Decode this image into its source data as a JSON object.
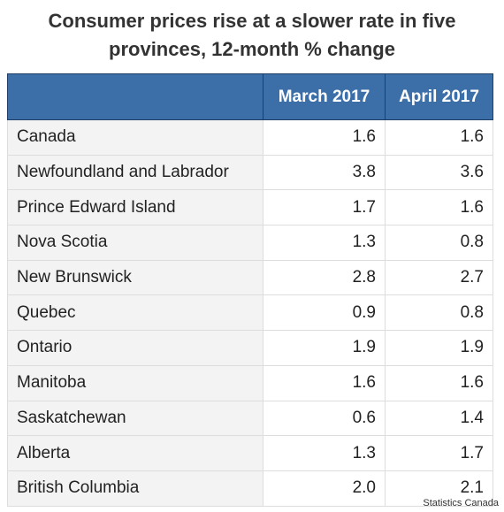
{
  "title_lines": [
    "Consumer prices rise at a slower rate in five",
    "provinces, 12-month % change"
  ],
  "source": "Statistics Canada",
  "colors": {
    "header_bg": "#3c6fa8",
    "header_text": "#ffffff",
    "name_cell_bg": "#f3f3f3",
    "value_cell_bg": "#ffffff"
  },
  "chart_data": {
    "type": "table",
    "title": "Consumer prices rise at a slower rate in five provinces, 12-month % change",
    "columns": [
      "",
      "March 2017",
      "April 2017"
    ],
    "rows": [
      {
        "name": "Canada",
        "march": "1.6",
        "april": "1.6"
      },
      {
        "name": "Newfoundland and Labrador",
        "march": "3.8",
        "april": "3.6"
      },
      {
        "name": "Prince Edward Island",
        "march": "1.7",
        "april": "1.6"
      },
      {
        "name": "Nova Scotia",
        "march": "1.3",
        "april": "0.8"
      },
      {
        "name": "New Brunswick",
        "march": "2.8",
        "april": "2.7"
      },
      {
        "name": "Quebec",
        "march": "0.9",
        "april": "0.8"
      },
      {
        "name": "Ontario",
        "march": "1.9",
        "april": "1.9"
      },
      {
        "name": "Manitoba",
        "march": "1.6",
        "april": "1.6"
      },
      {
        "name": "Saskatchewan",
        "march": "0.6",
        "april": "1.4"
      },
      {
        "name": "Alberta",
        "march": "1.3",
        "april": "1.7"
      },
      {
        "name": "British Columbia",
        "march": "2.0",
        "april": "2.1"
      }
    ]
  }
}
